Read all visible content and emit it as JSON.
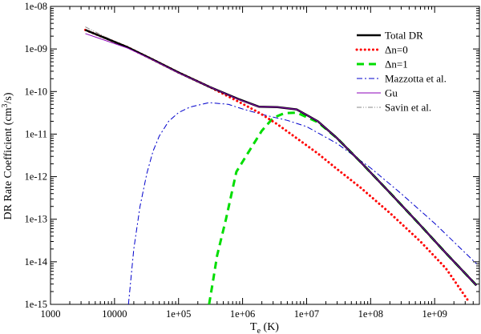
{
  "chart_data": {
    "type": "line",
    "xlabel_main": "T",
    "xlabel_sub": "e",
    "xlabel_rest": " (K)",
    "ylabel_main": "DR Rate Coefficient (cm",
    "ylabel_sup": "3",
    "ylabel_rest": "/s)",
    "x_scale": "log",
    "y_scale": "log",
    "xlim": [
      1000,
      5000000000
    ],
    "ylim": [
      1e-15,
      1e-08
    ],
    "x_ticks": [
      {
        "value": 1000,
        "label": "1000"
      },
      {
        "value": 10000,
        "label": "10000"
      },
      {
        "value": 100000,
        "label": "1e+05"
      },
      {
        "value": 1000000,
        "label": "1e+06"
      },
      {
        "value": 10000000,
        "label": "1e+07"
      },
      {
        "value": 100000000,
        "label": "1e+08"
      },
      {
        "value": 1000000000,
        "label": "1e+09"
      }
    ],
    "y_ticks": [
      {
        "value": 1e-15,
        "label": "1e-15"
      },
      {
        "value": 1e-14,
        "label": "1e-14"
      },
      {
        "value": 1e-13,
        "label": "1e-13"
      },
      {
        "value": 1e-12,
        "label": "1e-12"
      },
      {
        "value": 1e-11,
        "label": "1e-11"
      },
      {
        "value": 1e-10,
        "label": "1e-10"
      },
      {
        "value": 1e-09,
        "label": "1e-09"
      },
      {
        "value": 1e-08,
        "label": "1e-08"
      }
    ],
    "grid": false,
    "legend_position": "top-right",
    "series": [
      {
        "name": "Total DR",
        "color": "#000000",
        "style": "solid-thick",
        "x": [
          3500,
          16000,
          40000,
          100000,
          300000,
          900000,
          1800000,
          3500000,
          7000000,
          15000000,
          30000000,
          70000000,
          200000000,
          600000000,
          1500000000,
          4500000000
        ],
        "y": [
          2.8e-09,
          1.1e-09,
          5.6e-10,
          2.8e-10,
          1.3e-10,
          6.5e-11,
          4.4e-11,
          4.3e-11,
          3.8e-11,
          2e-11,
          8e-12,
          2.2e-12,
          4.2e-13,
          7.2e-14,
          1.6e-14,
          2.8e-15
        ]
      },
      {
        "name": "Δn=0",
        "color": "#ff0000",
        "style": "dotted",
        "x": [
          3500,
          16000,
          40000,
          100000,
          300000,
          900000,
          1800000,
          3500000,
          7000000,
          15000000,
          30000000,
          70000000,
          200000000,
          600000000,
          1500000000,
          3500000000
        ],
        "y": [
          2.8e-09,
          1.1e-09,
          5.6e-10,
          2.8e-10,
          1.3e-10,
          5.6e-11,
          3.2e-11,
          1.7e-11,
          8e-12,
          3.5e-12,
          1.5e-12,
          5.5e-13,
          1.4e-13,
          3e-14,
          7e-15,
          1.1e-15
        ]
      },
      {
        "name": "Δn=1",
        "color": "#00dd00",
        "style": "dashed",
        "x": [
          300000,
          350000,
          400000,
          550000,
          800000,
          1200000,
          2000000,
          3000000,
          4500000,
          7000000,
          15000000,
          30000000,
          70000000,
          200000000,
          600000000,
          1500000000,
          4500000000
        ],
        "y": [
          1e-15,
          4e-15,
          1.4e-14,
          1e-13,
          1.3e-12,
          3.5e-12,
          1.2e-11,
          2.4e-11,
          3.1e-11,
          3.2e-11,
          1.9e-11,
          8e-12,
          2.2e-12,
          4.2e-13,
          7.2e-14,
          1.6e-14,
          2.8e-15
        ]
      },
      {
        "name": "Mazzotta et al.",
        "color": "#0000cc",
        "style": "dash-dot",
        "x": [
          16500,
          20000,
          25000,
          32000,
          40000,
          50000,
          70000,
          100000,
          150000,
          300000,
          600000,
          1000000,
          2000000,
          5000000,
          10000000,
          30000000,
          100000000,
          300000000,
          1000000000,
          4500000000
        ],
        "y": [
          1e-15,
          2e-14,
          2e-13,
          1.2e-12,
          4e-12,
          9e-12,
          2e-11,
          3.2e-11,
          4.3e-11,
          5.5e-11,
          5e-11,
          3.9e-11,
          2.9e-11,
          2.1e-11,
          1.5e-11,
          6e-12,
          1.6e-12,
          4e-13,
          8e-14,
          9e-15
        ]
      },
      {
        "name": "Gu",
        "color": "#8b00b8",
        "style": "solid-thin",
        "x": [
          3500,
          16000,
          40000,
          100000,
          300000,
          900000,
          1800000,
          3500000,
          7000000,
          15000000,
          30000000,
          70000000,
          200000000,
          600000000,
          1500000000,
          4500000000
        ],
        "y": [
          2.3e-09,
          1.05e-09,
          5.5e-10,
          2.75e-10,
          1.3e-10,
          6.4e-11,
          4.4e-11,
          4.3e-11,
          3.8e-11,
          2e-11,
          8e-12,
          2.2e-12,
          4.2e-13,
          7.2e-14,
          1.6e-14,
          2.8e-15
        ]
      },
      {
        "name": "Savin et al.",
        "color": "#888888",
        "style": "dash-dot-dot",
        "x": [
          3500,
          6000,
          10000,
          16000
        ],
        "y": [
          3.3e-09,
          2.2e-09,
          1.5e-09,
          1.05e-09
        ]
      }
    ]
  }
}
